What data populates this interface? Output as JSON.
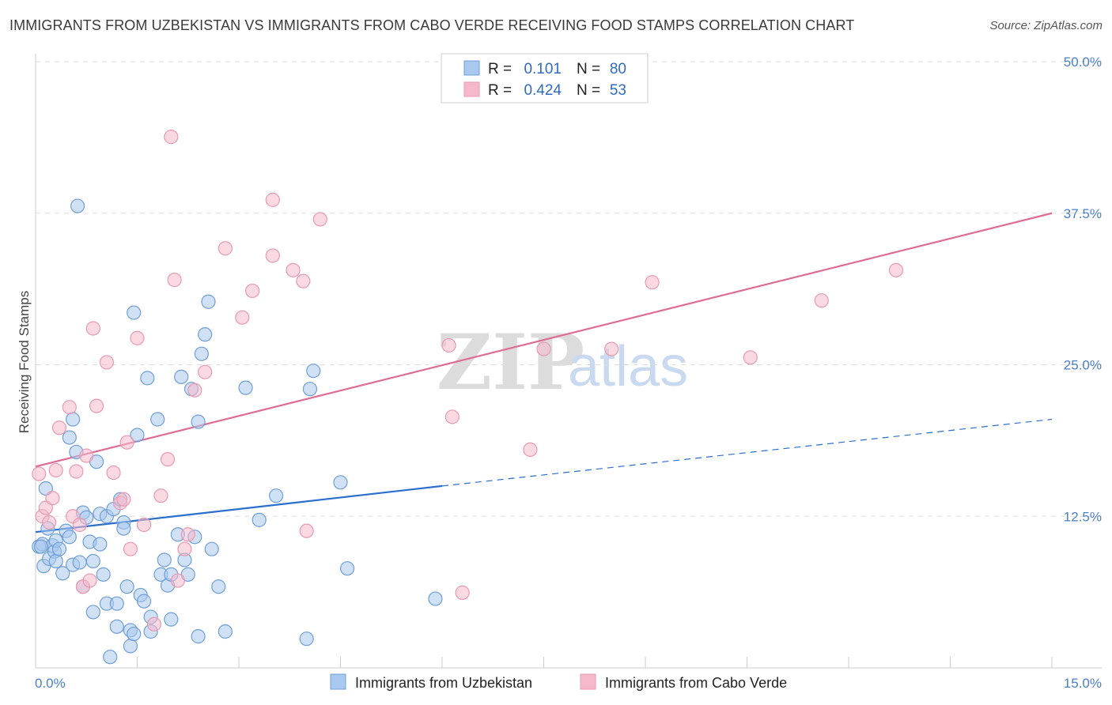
{
  "title": "IMMIGRANTS FROM UZBEKISTAN VS IMMIGRANTS FROM CABO VERDE RECEIVING FOOD STAMPS CORRELATION CHART",
  "source": "Source: ZipAtlas.com",
  "watermark": {
    "zip": "ZIP",
    "atlas": "atlas"
  },
  "legend": {
    "r_label": "R =",
    "n_label": "N =",
    "rows": [
      {
        "r": "0.101",
        "n": "80"
      },
      {
        "r": "0.424",
        "n": "53"
      }
    ]
  },
  "colors": {
    "blue_fill": "#a9c8ef",
    "blue_stroke": "#6f9fd8",
    "blue_line": "#2a6fcd",
    "pink_fill": "#f6b9cb",
    "pink_stroke": "#e79ab2",
    "pink_line": "#e06b94",
    "grid": "#dddddd",
    "axis_text": "#4a7fc9"
  },
  "chart_data": {
    "type": "scatter",
    "title": "IMMIGRANTS FROM UZBEKISTAN VS IMMIGRANTS FROM CABO VERDE RECEIVING FOOD STAMPS CORRELATION CHART",
    "xlabel": "",
    "ylabel": "Receiving Food Stamps",
    "xlim": [
      0,
      15
    ],
    "ylim": [
      0,
      50
    ],
    "x_tick_labels": [
      "0.0%",
      "15.0%"
    ],
    "y_ticks": [
      12.5,
      25.0,
      37.5,
      50.0
    ],
    "y_tick_labels": [
      "12.5%",
      "25.0%",
      "37.5%",
      "50.0%"
    ],
    "grid": true,
    "series": [
      {
        "name": "Immigrants from Uzbekistan",
        "color": "blue",
        "trend": {
          "x0": 0.0,
          "y0": 11.2,
          "x1": 6.0,
          "y1": 15.0,
          "dashed_to_x": 15.0,
          "dashed_to_y": 20.5
        },
        "points": [
          [
            0.05,
            10.0
          ],
          [
            0.1,
            10.2
          ],
          [
            0.12,
            8.4
          ],
          [
            0.15,
            14.8
          ],
          [
            0.18,
            11.5
          ],
          [
            0.2,
            9.0
          ],
          [
            0.25,
            10.1
          ],
          [
            0.28,
            9.6
          ],
          [
            0.3,
            10.5
          ],
          [
            0.3,
            8.8
          ],
          [
            0.35,
            9.8
          ],
          [
            0.4,
            7.8
          ],
          [
            0.45,
            11.3
          ],
          [
            0.5,
            10.8
          ],
          [
            0.5,
            19.0
          ],
          [
            0.55,
            20.5
          ],
          [
            0.55,
            8.5
          ],
          [
            0.6,
            17.8
          ],
          [
            0.65,
            8.7
          ],
          [
            0.7,
            12.8
          ],
          [
            0.7,
            6.7
          ],
          [
            0.75,
            12.4
          ],
          [
            0.8,
            10.4
          ],
          [
            0.85,
            8.8
          ],
          [
            0.85,
            4.6
          ],
          [
            0.9,
            17.0
          ],
          [
            0.95,
            12.7
          ],
          [
            0.95,
            10.2
          ],
          [
            1.0,
            7.7
          ],
          [
            1.05,
            12.5
          ],
          [
            1.05,
            5.3
          ],
          [
            1.1,
            0.9
          ],
          [
            1.15,
            13.1
          ],
          [
            1.2,
            5.3
          ],
          [
            1.2,
            3.4
          ],
          [
            1.25,
            13.9
          ],
          [
            1.3,
            12.0
          ],
          [
            1.3,
            11.5
          ],
          [
            1.35,
            6.7
          ],
          [
            1.4,
            1.8
          ],
          [
            1.4,
            3.1
          ],
          [
            1.45,
            2.8
          ],
          [
            1.5,
            19.2
          ],
          [
            1.55,
            6.0
          ],
          [
            1.6,
            5.5
          ],
          [
            1.65,
            23.9
          ],
          [
            1.7,
            4.2
          ],
          [
            1.7,
            3.0
          ],
          [
            1.8,
            20.5
          ],
          [
            1.85,
            7.7
          ],
          [
            1.9,
            8.9
          ],
          [
            1.95,
            6.8
          ],
          [
            2.0,
            7.7
          ],
          [
            2.0,
            4.0
          ],
          [
            2.1,
            11.0
          ],
          [
            2.15,
            24.0
          ],
          [
            2.2,
            8.9
          ],
          [
            2.25,
            7.7
          ],
          [
            2.3,
            23.0
          ],
          [
            2.35,
            10.8
          ],
          [
            2.4,
            2.6
          ],
          [
            2.4,
            20.3
          ],
          [
            2.45,
            25.9
          ],
          [
            2.5,
            27.5
          ],
          [
            2.55,
            30.2
          ],
          [
            2.6,
            9.8
          ],
          [
            2.7,
            6.7
          ],
          [
            2.8,
            3.0
          ],
          [
            3.1,
            23.1
          ],
          [
            3.3,
            12.2
          ],
          [
            3.55,
            14.2
          ],
          [
            4.0,
            2.4
          ],
          [
            4.05,
            23.0
          ],
          [
            4.1,
            24.5
          ],
          [
            4.5,
            15.3
          ],
          [
            4.6,
            8.2
          ],
          [
            5.9,
            5.7
          ],
          [
            0.62,
            38.1
          ],
          [
            1.45,
            29.3
          ],
          [
            0.08,
            10.0
          ]
        ]
      },
      {
        "name": "Immigrants from Cabo Verde",
        "color": "pink",
        "trend": {
          "x0": 0.0,
          "y0": 16.6,
          "x1": 15.0,
          "y1": 37.5
        },
        "points": [
          [
            0.05,
            16.0
          ],
          [
            0.1,
            12.5
          ],
          [
            0.15,
            13.2
          ],
          [
            0.2,
            12.0
          ],
          [
            0.25,
            14.0
          ],
          [
            0.3,
            16.3
          ],
          [
            0.35,
            19.8
          ],
          [
            0.5,
            21.5
          ],
          [
            0.55,
            12.5
          ],
          [
            0.6,
            16.2
          ],
          [
            0.65,
            11.8
          ],
          [
            0.7,
            6.7
          ],
          [
            0.75,
            17.5
          ],
          [
            0.8,
            7.2
          ],
          [
            0.85,
            28.0
          ],
          [
            0.9,
            21.6
          ],
          [
            1.05,
            25.2
          ],
          [
            1.15,
            16.1
          ],
          [
            1.25,
            13.6
          ],
          [
            1.3,
            13.9
          ],
          [
            1.35,
            18.6
          ],
          [
            1.4,
            9.8
          ],
          [
            1.5,
            27.2
          ],
          [
            1.6,
            11.8
          ],
          [
            1.75,
            3.6
          ],
          [
            1.85,
            14.2
          ],
          [
            1.95,
            17.2
          ],
          [
            2.0,
            43.8
          ],
          [
            2.05,
            32.0
          ],
          [
            2.1,
            7.2
          ],
          [
            2.2,
            9.8
          ],
          [
            2.25,
            11.0
          ],
          [
            2.35,
            22.9
          ],
          [
            2.5,
            24.4
          ],
          [
            2.8,
            34.6
          ],
          [
            3.05,
            28.9
          ],
          [
            3.2,
            31.1
          ],
          [
            3.5,
            38.6
          ],
          [
            3.5,
            34.0
          ],
          [
            3.8,
            32.8
          ],
          [
            3.95,
            31.9
          ],
          [
            4.0,
            11.3
          ],
          [
            4.2,
            37.0
          ],
          [
            6.1,
            26.6
          ],
          [
            6.15,
            20.7
          ],
          [
            6.3,
            6.2
          ],
          [
            7.3,
            18.0
          ],
          [
            7.5,
            26.3
          ],
          [
            8.5,
            26.3
          ],
          [
            9.1,
            31.8
          ],
          [
            10.55,
            25.6
          ],
          [
            11.6,
            30.3
          ],
          [
            12.7,
            32.8
          ]
        ]
      }
    ]
  },
  "bottom_legend": [
    "Immigrants from Uzbekistan",
    "Immigrants from Cabo Verde"
  ]
}
